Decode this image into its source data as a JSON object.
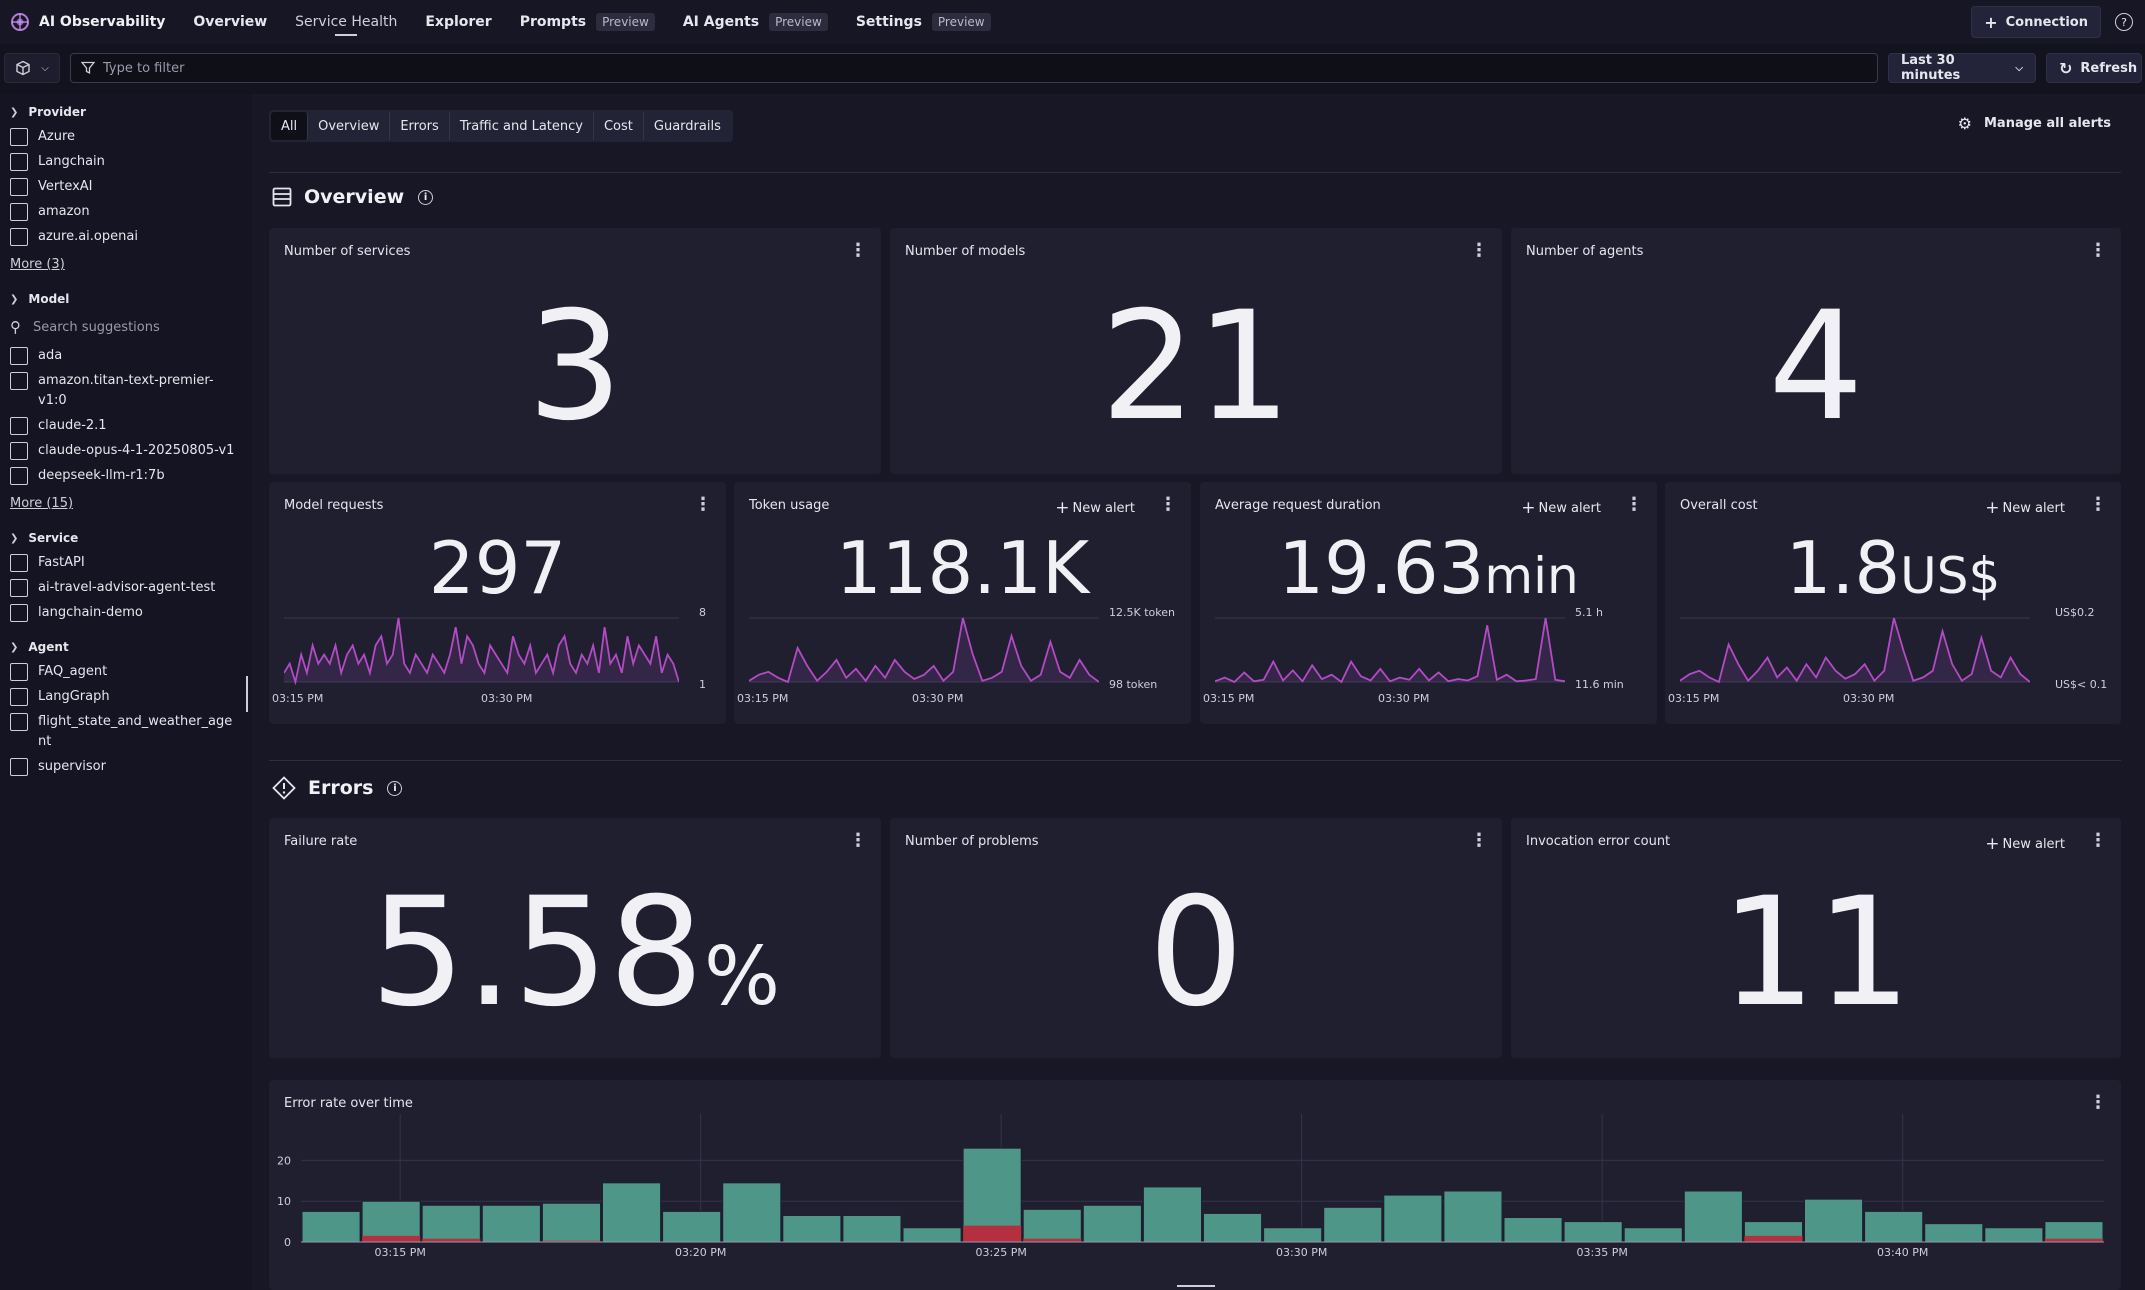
{
  "app": {
    "name": "AI Observability"
  },
  "nav": [
    {
      "label": "Overview"
    },
    {
      "label": "Service Health",
      "active": true
    },
    {
      "label": "Explorer"
    },
    {
      "label": "Prompts",
      "badge": "Preview"
    },
    {
      "label": "AI Agents",
      "badge": "Preview"
    },
    {
      "label": "Settings",
      "badge": "Preview"
    }
  ],
  "topright": {
    "connection": "Connection",
    "help": "?"
  },
  "filter": {
    "placeholder": "Type to filter",
    "time": "Last 30 minutes",
    "refresh": "Refresh"
  },
  "sidebar": {
    "provider": {
      "title": "Provider",
      "items": [
        "Azure",
        "Langchain",
        "VertexAI",
        "amazon",
        "azure.ai.openai"
      ],
      "more": "More (3)"
    },
    "model": {
      "title": "Model",
      "search": "Search suggestions",
      "items": [
        "ada",
        "amazon.titan-text-premier-v1:0",
        "claude-2.1",
        "claude-opus-4-1-20250805-v1",
        "deepseek-llm-r1:7b"
      ],
      "more": "More (15)"
    },
    "service": {
      "title": "Service",
      "items": [
        "FastAPI",
        "ai-travel-advisor-agent-test",
        "langchain-demo"
      ]
    },
    "agent": {
      "title": "Agent",
      "items": [
        "FAQ_agent",
        "LangGraph",
        "flight_state_and_weather_agent",
        "supervisor"
      ]
    }
  },
  "tabs": [
    "All",
    "Overview",
    "Errors",
    "Traffic and Latency",
    "Cost",
    "Guardrails"
  ],
  "manage_alerts": "Manage all alerts",
  "overview": {
    "title": "Overview",
    "services": {
      "title": "Number of services",
      "value": "3"
    },
    "models": {
      "title": "Number of models",
      "value": "21"
    },
    "agents": {
      "title": "Number of agents",
      "value": "4"
    },
    "new_alert": "New alert",
    "requests": {
      "title": "Model requests",
      "value": "297",
      "unit": "",
      "ymax": "8",
      "ymin": "1",
      "x1": "03:15 PM",
      "x2": "03:30 PM",
      "series": [
        2,
        3,
        1,
        4,
        2,
        5,
        3,
        4,
        3,
        5,
        2,
        4,
        5,
        3,
        4,
        2,
        5,
        6,
        3,
        4,
        8,
        3,
        2,
        4,
        3,
        2,
        4,
        3,
        2,
        4,
        7,
        3,
        6,
        5,
        3,
        2,
        5,
        4,
        3,
        2,
        6,
        4,
        3,
        5,
        2,
        3,
        4,
        2,
        5,
        6,
        3,
        2,
        4,
        3,
        5,
        2,
        7,
        3,
        4,
        2,
        6,
        3,
        5,
        4,
        3,
        6,
        2,
        4,
        3,
        1
      ]
    },
    "tokens": {
      "title": "Token usage",
      "value": "118.1K",
      "unit": "",
      "ymax": "12.5K token",
      "ymin": "98 token",
      "x1": "03:15 PM",
      "x2": "03:30 PM",
      "series": [
        0.5,
        1.5,
        2,
        1,
        0.3,
        6,
        3,
        0.5,
        2,
        4,
        1,
        2.5,
        0.5,
        3,
        1,
        4,
        2,
        0.8,
        1.5,
        3,
        0.5,
        2,
        11,
        5,
        0.5,
        1,
        2,
        8,
        3,
        0.5,
        1.5,
        7,
        2,
        1,
        4,
        1.5,
        0.3
      ]
    },
    "duration": {
      "title": "Average request duration",
      "value": "19.63",
      "unit": "min",
      "ymax": "5.1 h",
      "ymin": "11.6 min",
      "x1": "03:15 PM",
      "x2": "03:30 PM",
      "series": [
        0.3,
        0.8,
        0.2,
        1.5,
        0.3,
        0.5,
        3,
        0.4,
        1.8,
        0.3,
        2.5,
        0.6,
        1.2,
        0.2,
        3,
        1,
        0.4,
        2,
        0.3,
        0.8,
        0.5,
        2,
        0.4,
        1.5,
        0.3,
        0.6,
        0.4,
        1,
        8,
        0.5,
        1.2,
        0.3,
        0.4,
        0.6,
        9,
        0.5,
        0.3
      ]
    },
    "cost": {
      "title": "Overall cost",
      "value": "1.8",
      "unit": "US$",
      "ymax": "US$0.2",
      "ymin": "US$< 0.1",
      "x1": "03:15 PM",
      "x2": "03:30 PM",
      "series": [
        0.5,
        1.5,
        2,
        1,
        0.3,
        6,
        3,
        0.5,
        2,
        4,
        1,
        2.5,
        0.5,
        3,
        1,
        4,
        2,
        0.8,
        1.5,
        3,
        0.5,
        2,
        10,
        5,
        0.5,
        1,
        2,
        8,
        3,
        0.5,
        1.5,
        7,
        2,
        1,
        4,
        1.5,
        0.3
      ]
    }
  },
  "errors": {
    "title": "Errors",
    "failure": {
      "title": "Failure rate",
      "value": "5.58",
      "unit": "%"
    },
    "problems": {
      "title": "Number of problems",
      "value": "0"
    },
    "invocation": {
      "title": "Invocation error count",
      "value": "11"
    }
  },
  "chart_data": {
    "type": "bar",
    "title": "Error rate over time",
    "ylim": [
      0,
      25
    ],
    "yticks": [
      "20",
      "10",
      "0"
    ],
    "xticks": [
      "03:15 PM",
      "03:20 PM",
      "03:25 PM",
      "03:30 PM",
      "03:35 PM",
      "03:40 PM"
    ],
    "series": [
      {
        "values": [
          7.5,
          10,
          9,
          9,
          9.5,
          14.5,
          7.5,
          14.5,
          6.5,
          6.5,
          3.5,
          23,
          8,
          9,
          13.5,
          7,
          3.5,
          8.5,
          11.5,
          12.5,
          6,
          5,
          3.5,
          12.5,
          5,
          10.5,
          7.5,
          4.5,
          3.5,
          5
        ]
      },
      {
        "values": [
          0,
          1.5,
          0.8,
          0,
          0.3,
          0,
          0,
          0,
          0,
          0,
          0,
          4,
          0.8,
          0,
          0,
          0,
          0,
          0,
          0,
          0,
          0,
          0,
          0,
          0,
          1.5,
          0,
          0,
          0,
          0,
          0.8
        ]
      }
    ],
    "colors": {
      "ok": "#4e9688",
      "error": "#b4303f"
    }
  }
}
